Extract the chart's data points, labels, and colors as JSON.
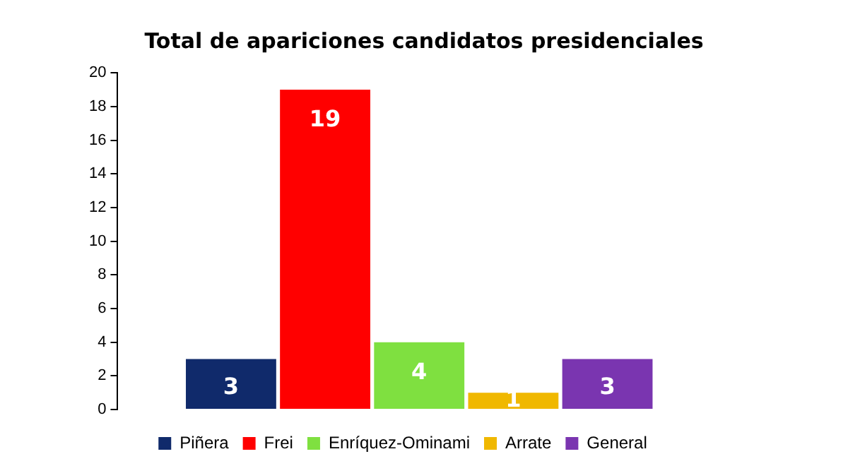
{
  "chart_data": {
    "type": "bar",
    "title": "Total de apariciones candidatos presidenciales",
    "categories": [
      null
    ],
    "series": [
      {
        "name": "Piñera",
        "color": "#102a6b",
        "values": [
          3
        ]
      },
      {
        "name": "Frei",
        "color": "#ff0000",
        "values": [
          19
        ]
      },
      {
        "name": "Enríquez-Ominami",
        "color": "#7fe040",
        "values": [
          4
        ]
      },
      {
        "name": "Arrate",
        "color": "#f0b800",
        "values": [
          1
        ]
      },
      {
        "name": "General",
        "color": "#7a35b0",
        "values": [
          3
        ]
      }
    ],
    "ylim": [
      0,
      20
    ],
    "yticks": [
      0,
      2,
      4,
      6,
      8,
      10,
      12,
      14,
      16,
      18,
      20
    ],
    "data_labels": true,
    "legend": "bottom"
  }
}
